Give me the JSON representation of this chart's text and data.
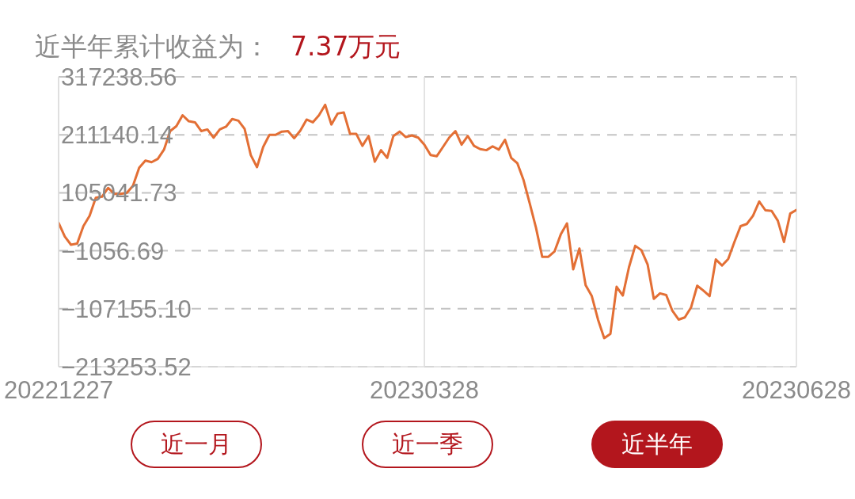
{
  "chart_data": {
    "type": "line",
    "title": "近半年累计收益为：",
    "subtitle": "7.37万元",
    "categories": [
      "20221227",
      null,
      null,
      null,
      null,
      null,
      null,
      null,
      null,
      null,
      null,
      null,
      null,
      null,
      null,
      null,
      null,
      null,
      null,
      null,
      null,
      null,
      null,
      null,
      null,
      null,
      null,
      null,
      null,
      null,
      null,
      null,
      null,
      null,
      null,
      null,
      null,
      null,
      null,
      null,
      null,
      null,
      null,
      null,
      null,
      null,
      null,
      null,
      null,
      null,
      null,
      null,
      null,
      null,
      null,
      null,
      null,
      null,
      null,
      "20230328",
      null,
      null,
      null,
      null,
      null,
      null,
      null,
      null,
      null,
      null,
      null,
      null,
      null,
      null,
      null,
      null,
      null,
      null,
      null,
      null,
      null,
      null,
      null,
      null,
      null,
      null,
      null,
      null,
      null,
      null,
      null,
      null,
      null,
      null,
      null,
      null,
      null,
      null,
      null,
      null,
      null,
      null,
      null,
      null,
      null,
      null,
      null,
      null,
      null,
      null,
      null,
      null,
      null,
      null,
      null,
      null,
      null,
      null,
      null,
      "20230628"
    ],
    "values": [
      50000,
      25000,
      10000,
      12000,
      44000,
      63000,
      96000,
      98000,
      114000,
      103000,
      103000,
      105000,
      118000,
      151000,
      164000,
      161000,
      167000,
      184000,
      218000,
      227000,
      247000,
      236000,
      234000,
      218000,
      221000,
      206000,
      221000,
      226000,
      240000,
      237000,
      222000,
      174000,
      152000,
      189000,
      211000,
      211000,
      217000,
      218000,
      205000,
      219000,
      239000,
      234000,
      247000,
      266000,
      230000,
      250000,
      252000,
      213000,
      213000,
      191000,
      209000,
      162000,
      183000,
      169000,
      209000,
      217000,
      207000,
      210000,
      206000,
      193000,
      174000,
      172000,
      189000,
      206000,
      218000,
      193000,
      209000,
      191000,
      185000,
      183000,
      190000,
      184000,
      202000,
      169000,
      159000,
      128000,
      85000,
      41000,
      -12000,
      -12000,
      -2000,
      29000,
      49000,
      -35000,
      3000,
      -64000,
      -84000,
      -127000,
      -161000,
      -153000,
      -67000,
      -83000,
      -31000,
      8000,
      0,
      -26000,
      -89000,
      -79000,
      -82000,
      -111000,
      -127000,
      -123000,
      -105000,
      -65000,
      -74000,
      -84000,
      -17000,
      -28000,
      -16000,
      15000,
      44000,
      48000,
      63000,
      89000,
      73000,
      72000,
      54000,
      15000,
      67000,
      73700
    ],
    "color": "#e36f35",
    "ylim": [
      -213253.52,
      317238.56
    ],
    "yticks": [
      {
        "value": -213253.52,
        "label": "−213253.52"
      },
      {
        "value": -107155.1,
        "label": "−107155.10"
      },
      {
        "value": -1056.69,
        "label": "−1056.69"
      },
      {
        "value": 105041.73,
        "label": "105041.73"
      },
      {
        "value": 211140.14,
        "label": "211140.14"
      },
      {
        "value": 317238.56,
        "label": "317238.56"
      }
    ],
    "grid": true,
    "annotations": [
      "近一月",
      "近一季",
      "近半年"
    ]
  }
}
